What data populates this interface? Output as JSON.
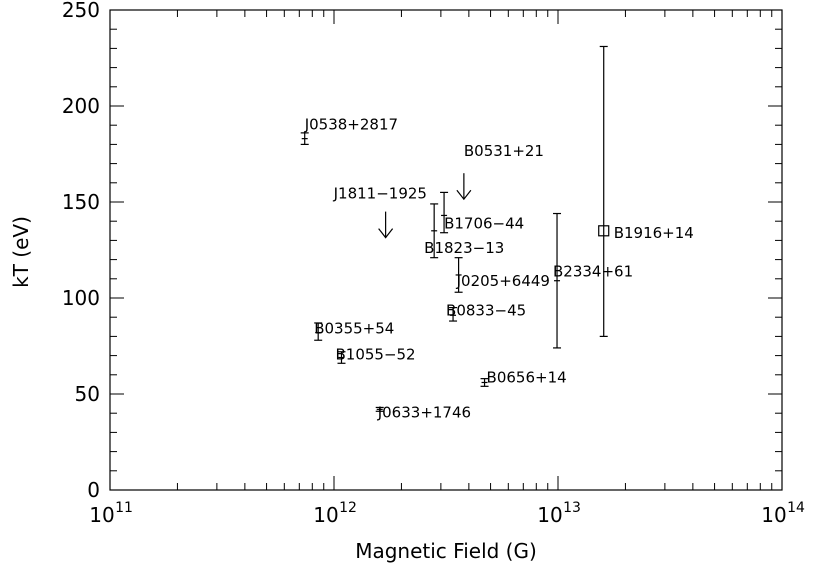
{
  "chart_data": {
    "type": "scatter",
    "xlabel": "Magnetic Field (G)",
    "ylabel": "kT (eV)",
    "xscale": "log",
    "xlim": [
      100000000000.0,
      100000000000000.0
    ],
    "ylim": [
      0,
      250
    ],
    "x_ticks": [
      {
        "base": "10",
        "exp": "11",
        "value": 100000000000.0
      },
      {
        "base": "10",
        "exp": "12",
        "value": 1000000000000.0
      },
      {
        "base": "10",
        "exp": "13",
        "value": 10000000000000.0
      },
      {
        "base": "10",
        "exp": "14",
        "value": 100000000000000.0
      }
    ],
    "y_ticks": [
      "0",
      "50",
      "100",
      "150",
      "200",
      "250"
    ],
    "grid": false,
    "legend": "none",
    "points": [
      {
        "label": "J0538+2817",
        "x": 740000000000.0,
        "y": 183,
        "ylow": 180,
        "yhigh": 186,
        "marker": "errorbar"
      },
      {
        "label": "B0531+21",
        "x": 3800000000000.0,
        "y": 165,
        "marker": "upper-limit"
      },
      {
        "label": "J1811−1925",
        "x": 1700000000000.0,
        "y": 145,
        "marker": "upper-limit"
      },
      {
        "label": "B1706−44",
        "x": 3100000000000.0,
        "y": 143,
        "ylow": 134,
        "yhigh": 155,
        "marker": "errorbar"
      },
      {
        "label": "B1823−13",
        "x": 2800000000000.0,
        "y": 135,
        "ylow": 121,
        "yhigh": 149,
        "marker": "errorbar"
      },
      {
        "label": "J0205+6449",
        "x": 3600000000000.0,
        "y": 112,
        "ylow": 103,
        "yhigh": 121,
        "marker": "errorbar"
      },
      {
        "label": "B1916+14",
        "x": 16000000000000.0,
        "y": 135,
        "ylow": 80,
        "yhigh": 231,
        "marker": "square"
      },
      {
        "label": "B2334+61",
        "x": 9900000000000.0,
        "y": 109,
        "ylow": 74,
        "yhigh": 144,
        "marker": "errorbar"
      },
      {
        "label": "B0833−45",
        "x": 3400000000000.0,
        "y": 91,
        "ylow": 88,
        "yhigh": 95,
        "marker": "errorbar"
      },
      {
        "label": "B0355+54",
        "x": 850000000000.0,
        "y": 82,
        "ylow": 78,
        "yhigh": 87,
        "marker": "errorbar"
      },
      {
        "label": "B1055−52",
        "x": 1080000000000.0,
        "y": 69,
        "ylow": 66,
        "yhigh": 72,
        "marker": "errorbar"
      },
      {
        "label": "B0656+14",
        "x": 4700000000000.0,
        "y": 56,
        "ylow": 54,
        "yhigh": 58,
        "marker": "errorbar"
      },
      {
        "label": "J0633+1746",
        "x": 1600000000000.0,
        "y": 42,
        "ylow": 41,
        "yhigh": 43,
        "marker": "errorbar"
      }
    ]
  }
}
